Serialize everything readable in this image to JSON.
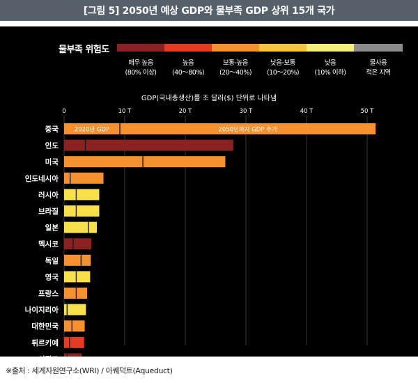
{
  "header": {
    "title": "[그림 5] 2050년 예상 GDP와 물부족 GDP 상위 15개 국가"
  },
  "legend": {
    "title": "물부족 위험도",
    "items": [
      {
        "label": "매우 높음\n(80% 이상)",
        "color": "#8b2222"
      },
      {
        "label": "높음\n(40～80%)",
        "color": "#e53b20"
      },
      {
        "label": "보통-높음\n(20～40%)",
        "color": "#f5922f"
      },
      {
        "label": "낮음-보통\n(10～20%)",
        "color": "#f7c53e"
      },
      {
        "label": "낮음\n(10% 이하)",
        "color": "#f6ee7c"
      },
      {
        "label": "물사용\n적은 지역",
        "color": "#8c8c8c"
      }
    ]
  },
  "chart_data": {
    "type": "bar",
    "orientation": "horizontal",
    "stacked": true,
    "title": "GDP(국내총생산)를 조 달러($) 단위로 나타냄",
    "xlim": [
      0,
      55
    ],
    "ticks": [
      {
        "value": 0,
        "label": "0"
      },
      {
        "value": 10,
        "label": "10 T"
      },
      {
        "value": 20,
        "label": "20 T"
      },
      {
        "value": 30,
        "label": "30 T"
      },
      {
        "value": 40,
        "label": "40 T"
      },
      {
        "value": 50,
        "label": "50 T"
      }
    ],
    "series": [
      {
        "name": "2020년 GDP"
      },
      {
        "name": "2050년까지 GDP 추가"
      }
    ],
    "rows": [
      {
        "country": "중국",
        "gdp2020": 9.2,
        "gdp2050": 51.4,
        "color2020": "#f5922f",
        "color2050": "#f5922f"
      },
      {
        "country": "인도",
        "gdp2020": 3.5,
        "gdp2050": 27.9,
        "color2020": "#8b2222",
        "color2050": "#8b2222"
      },
      {
        "country": "미국",
        "gdp2020": 13.0,
        "gdp2050": 26.6,
        "color2020": "#f5922f",
        "color2050": "#f5922f"
      },
      {
        "country": "인도네시아",
        "gdp2020": 1.0,
        "gdp2050": 6.5,
        "color2020": "#f5922f",
        "color2050": "#f5922f"
      },
      {
        "country": "러시아",
        "gdp2020": 2.0,
        "gdp2050": 5.8,
        "color2020": "#f7e04a",
        "color2050": "#f7e04a"
      },
      {
        "country": "브라질",
        "gdp2020": 2.0,
        "gdp2050": 5.8,
        "color2020": "#f7e04a",
        "color2050": "#f7e04a"
      },
      {
        "country": "일본",
        "gdp2020": 4.0,
        "gdp2050": 5.4,
        "color2020": "#f7e04a",
        "color2050": "#f7e04a"
      },
      {
        "country": "멕시코",
        "gdp2020": 1.5,
        "gdp2050": 4.5,
        "color2020": "#8b2222",
        "color2050": "#8b2222"
      },
      {
        "country": "독일",
        "gdp2020": 2.8,
        "gdp2050": 4.4,
        "color2020": "#f5922f",
        "color2050": "#f5922f"
      },
      {
        "country": "영국",
        "gdp2020": 2.0,
        "gdp2050": 4.3,
        "color2020": "#f7e04a",
        "color2050": "#f7e04a"
      },
      {
        "country": "프랑스",
        "gdp2020": 2.0,
        "gdp2050": 3.8,
        "color2020": "#f5922f",
        "color2050": "#f5922f"
      },
      {
        "country": "나이지리아",
        "gdp2020": 0.5,
        "gdp2050": 3.6,
        "color2020": "#f7e04a",
        "color2050": "#f7e04a"
      },
      {
        "country": "대한민국",
        "gdp2020": 1.3,
        "gdp2050": 3.4,
        "color2020": "#f5922f",
        "color2050": "#f5922f"
      },
      {
        "country": "튀르키예",
        "gdp2020": 0.9,
        "gdp2050": 3.3,
        "color2020": "#e53b20",
        "color2050": "#e53b20"
      },
      {
        "country": "이집트",
        "gdp2020": 0.5,
        "gdp2050": 2.9,
        "color2020": "#8b2222",
        "color2050": "#8b2222"
      }
    ]
  },
  "footer": {
    "source": "※출처 : 세계자원연구소(WRI) / 아퀘덕트(Aqueduct)"
  }
}
